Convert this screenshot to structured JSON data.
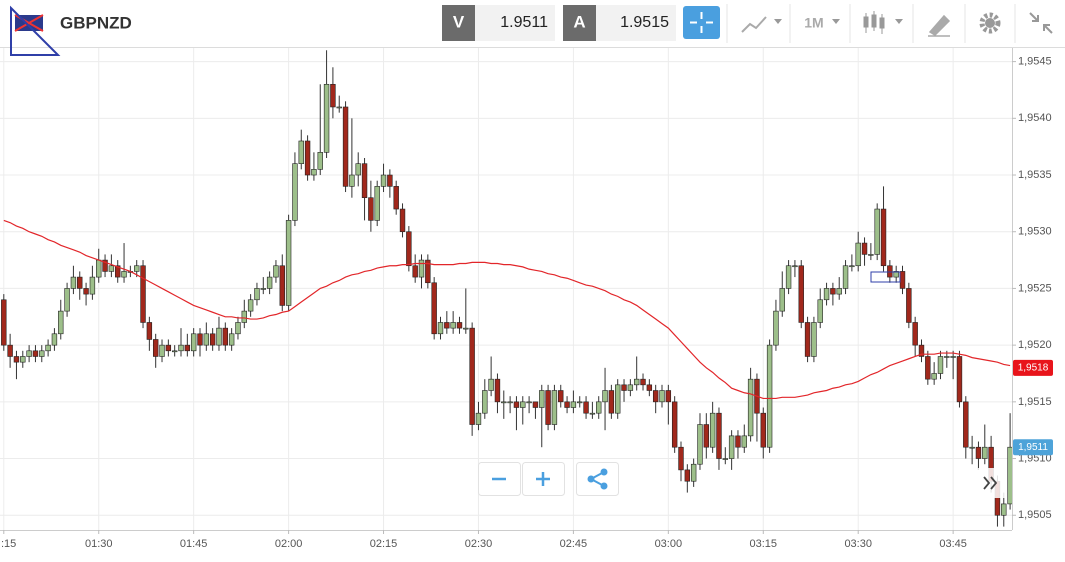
{
  "header": {
    "symbol": "GBPNZD",
    "bid_label": "V",
    "bid": "1.9511",
    "ask_label": "A",
    "ask": "1.9515",
    "timeframe": "1M"
  },
  "chart_data": {
    "type": "candlestick",
    "up_color": "#9dbf8a",
    "down_color": "#a1281c",
    "ma_color": "#e2262a",
    "candles": [
      [
        1.9524,
        1.95245,
        1.95195,
        1.952
      ],
      [
        1.952,
        1.9521,
        1.9518,
        1.9519
      ],
      [
        1.9519,
        1.95195,
        1.9517,
        1.95185
      ],
      [
        1.95185,
        1.95195,
        1.9518,
        1.9519
      ],
      [
        1.9519,
        1.952,
        1.95185,
        1.95195
      ],
      [
        1.95195,
        1.952,
        1.95185,
        1.9519
      ],
      [
        1.9519,
        1.952,
        1.95185,
        1.95195
      ],
      [
        1.95195,
        1.95205,
        1.9519,
        1.952
      ],
      [
        1.952,
        1.95215,
        1.95195,
        1.9521
      ],
      [
        1.9521,
        1.9524,
        1.95205,
        1.9523
      ],
      [
        1.9523,
        1.95255,
        1.95225,
        1.9525
      ],
      [
        1.9525,
        1.9527,
        1.95245,
        1.9526
      ],
      [
        1.9526,
        1.95265,
        1.9524,
        1.9525
      ],
      [
        1.9525,
        1.95255,
        1.95235,
        1.95245
      ],
      [
        1.95245,
        1.9527,
        1.9524,
        1.9526
      ],
      [
        1.9526,
        1.95285,
        1.95255,
        1.95275
      ],
      [
        1.95275,
        1.9528,
        1.9526,
        1.95265
      ],
      [
        1.95265,
        1.9528,
        1.9526,
        1.9527
      ],
      [
        1.9527,
        1.95275,
        1.95255,
        1.9526
      ],
      [
        1.9526,
        1.9529,
        1.95255,
        1.95265
      ],
      [
        1.95265,
        1.9527,
        1.9526,
        1.95265
      ],
      [
        1.95265,
        1.95275,
        1.9526,
        1.9527
      ],
      [
        1.9527,
        1.95275,
        1.95215,
        1.9522
      ],
      [
        1.9522,
        1.95225,
        1.95195,
        1.95205
      ],
      [
        1.95205,
        1.9521,
        1.9518,
        1.9519
      ],
      [
        1.9519,
        1.95205,
        1.95185,
        1.952
      ],
      [
        1.952,
        1.95205,
        1.9519,
        1.95195
      ],
      [
        1.95195,
        1.952,
        1.9519,
        1.95195
      ],
      [
        1.95195,
        1.95215,
        1.9519,
        1.952
      ],
      [
        1.952,
        1.9521,
        1.9519,
        1.95195
      ],
      [
        1.95195,
        1.95215,
        1.9519,
        1.9521
      ],
      [
        1.9521,
        1.95215,
        1.9519,
        1.952
      ],
      [
        1.952,
        1.9522,
        1.95195,
        1.9521
      ],
      [
        1.9521,
        1.95215,
        1.95195,
        1.952
      ],
      [
        1.952,
        1.95225,
        1.95195,
        1.95215
      ],
      [
        1.95215,
        1.9522,
        1.95195,
        1.952
      ],
      [
        1.952,
        1.95215,
        1.95195,
        1.9521
      ],
      [
        1.9521,
        1.95225,
        1.95205,
        1.9522
      ],
      [
        1.9522,
        1.9524,
        1.95215,
        1.9523
      ],
      [
        1.9523,
        1.95245,
        1.95225,
        1.9524
      ],
      [
        1.9524,
        1.95255,
        1.95235,
        1.9525
      ],
      [
        1.9525,
        1.9526,
        1.95245,
        1.9525
      ],
      [
        1.9525,
        1.95265,
        1.95245,
        1.9526
      ],
      [
        1.9526,
        1.95275,
        1.95255,
        1.9527
      ],
      [
        1.9527,
        1.9528,
        1.9523,
        1.95235
      ],
      [
        1.95235,
        1.95315,
        1.9523,
        1.9531
      ],
      [
        1.9531,
        1.9537,
        1.95305,
        1.9536
      ],
      [
        1.9536,
        1.9539,
        1.95355,
        1.9538
      ],
      [
        1.9538,
        1.95385,
        1.95345,
        1.9535
      ],
      [
        1.9535,
        1.9537,
        1.95345,
        1.95355
      ],
      [
        1.95355,
        1.9543,
        1.9535,
        1.9537
      ],
      [
        1.9537,
        1.9546,
        1.95365,
        1.9543
      ],
      [
        1.9543,
        1.95445,
        1.954,
        1.9541
      ],
      [
        1.9541,
        1.9542,
        1.95405,
        1.9541
      ],
      [
        1.9541,
        1.95415,
        1.95335,
        1.9534
      ],
      [
        1.9534,
        1.954,
        1.9533,
        1.9535
      ],
      [
        1.9535,
        1.9537,
        1.9534,
        1.9536
      ],
      [
        1.9536,
        1.95365,
        1.9531,
        1.9533
      ],
      [
        1.9533,
        1.95345,
        1.953,
        1.9531
      ],
      [
        1.9531,
        1.95345,
        1.95305,
        1.9534
      ],
      [
        1.9534,
        1.9536,
        1.95335,
        1.9535
      ],
      [
        1.9535,
        1.95355,
        1.9533,
        1.9534
      ],
      [
        1.9534,
        1.95345,
        1.95315,
        1.9532
      ],
      [
        1.9532,
        1.95325,
        1.95295,
        1.953
      ],
      [
        1.953,
        1.95305,
        1.95265,
        1.9527
      ],
      [
        1.9527,
        1.9528,
        1.95255,
        1.9526
      ],
      [
        1.9526,
        1.9528,
        1.9525,
        1.95275
      ],
      [
        1.95275,
        1.9528,
        1.9525,
        1.95255
      ],
      [
        1.95255,
        1.9526,
        1.95205,
        1.9521
      ],
      [
        1.9521,
        1.95225,
        1.95205,
        1.9522
      ],
      [
        1.9522,
        1.9523,
        1.9521,
        1.95215
      ],
      [
        1.95215,
        1.9523,
        1.9521,
        1.9522
      ],
      [
        1.9522,
        1.95225,
        1.9521,
        1.95215
      ],
      [
        1.95215,
        1.9525,
        1.9521,
        1.95215
      ],
      [
        1.95215,
        1.9522,
        1.9512,
        1.9513
      ],
      [
        1.9513,
        1.9515,
        1.95125,
        1.9514
      ],
      [
        1.9514,
        1.9517,
        1.95135,
        1.9516
      ],
      [
        1.9516,
        1.9519,
        1.95155,
        1.9517
      ],
      [
        1.9517,
        1.95175,
        1.9514,
        1.9515
      ],
      [
        1.9515,
        1.9516,
        1.95135,
        1.9515
      ],
      [
        1.9515,
        1.95155,
        1.9514,
        1.9515
      ],
      [
        1.9515,
        1.95155,
        1.95125,
        1.95145
      ],
      [
        1.95145,
        1.95155,
        1.9513,
        1.9515
      ],
      [
        1.9515,
        1.95155,
        1.9514,
        1.9515
      ],
      [
        1.9515,
        1.9515,
        1.95135,
        1.95145
      ],
      [
        1.95145,
        1.95165,
        1.9511,
        1.9516
      ],
      [
        1.9516,
        1.95165,
        1.95125,
        1.9513
      ],
      [
        1.9513,
        1.95165,
        1.95125,
        1.9516
      ],
      [
        1.9516,
        1.95165,
        1.95145,
        1.9515
      ],
      [
        1.9515,
        1.95155,
        1.9514,
        1.95145
      ],
      [
        1.95145,
        1.9516,
        1.9514,
        1.9515
      ],
      [
        1.9515,
        1.95155,
        1.95145,
        1.9515
      ],
      [
        1.9515,
        1.95155,
        1.95135,
        1.9514
      ],
      [
        1.9514,
        1.9515,
        1.95135,
        1.9514
      ],
      [
        1.9514,
        1.95155,
        1.95135,
        1.9515
      ],
      [
        1.9515,
        1.9518,
        1.95125,
        1.9516
      ],
      [
        1.9516,
        1.95165,
        1.95135,
        1.9514
      ],
      [
        1.9514,
        1.9517,
        1.95135,
        1.95165
      ],
      [
        1.95165,
        1.9517,
        1.9515,
        1.9516
      ],
      [
        1.9516,
        1.9517,
        1.95155,
        1.95165
      ],
      [
        1.95165,
        1.9519,
        1.9516,
        1.9517
      ],
      [
        1.9517,
        1.95175,
        1.9516,
        1.95165
      ],
      [
        1.95165,
        1.9517,
        1.95155,
        1.9516
      ],
      [
        1.9516,
        1.95165,
        1.9514,
        1.9515
      ],
      [
        1.9515,
        1.95165,
        1.95145,
        1.9516
      ],
      [
        1.9516,
        1.95165,
        1.9513,
        1.9515
      ],
      [
        1.9515,
        1.95155,
        1.95105,
        1.9511
      ],
      [
        1.9511,
        1.95115,
        1.9508,
        1.9509
      ],
      [
        1.9509,
        1.95095,
        1.9507,
        1.9508
      ],
      [
        1.9508,
        1.951,
        1.95075,
        1.95095
      ],
      [
        1.95095,
        1.9514,
        1.9509,
        1.9513
      ],
      [
        1.9513,
        1.9514,
        1.951,
        1.9511
      ],
      [
        1.9511,
        1.9515,
        1.95105,
        1.9514
      ],
      [
        1.9514,
        1.95145,
        1.9509,
        1.951
      ],
      [
        1.951,
        1.9511,
        1.95095,
        1.951
      ],
      [
        1.951,
        1.95125,
        1.9509,
        1.9512
      ],
      [
        1.9512,
        1.95125,
        1.951,
        1.9511
      ],
      [
        1.9511,
        1.9513,
        1.95105,
        1.9512
      ],
      [
        1.9512,
        1.9518,
        1.95115,
        1.9517
      ],
      [
        1.9517,
        1.95175,
        1.95115,
        1.9514
      ],
      [
        1.9514,
        1.95145,
        1.951,
        1.9511
      ],
      [
        1.9511,
        1.95205,
        1.95105,
        1.952
      ],
      [
        1.952,
        1.9524,
        1.95195,
        1.9523
      ],
      [
        1.9523,
        1.95265,
        1.95225,
        1.9525
      ],
      [
        1.9525,
        1.95275,
        1.95245,
        1.9527
      ],
      [
        1.9527,
        1.95275,
        1.9526,
        1.9527
      ],
      [
        1.9527,
        1.95275,
        1.95215,
        1.9522
      ],
      [
        1.9522,
        1.95225,
        1.95185,
        1.9519
      ],
      [
        1.9519,
        1.95225,
        1.95185,
        1.9522
      ],
      [
        1.9522,
        1.9525,
        1.95215,
        1.9524
      ],
      [
        1.9524,
        1.95255,
        1.95235,
        1.9525
      ],
      [
        1.9525,
        1.95255,
        1.95235,
        1.95245
      ],
      [
        1.95245,
        1.9526,
        1.9524,
        1.9525
      ],
      [
        1.9525,
        1.95275,
        1.95245,
        1.9527
      ],
      [
        1.9527,
        1.9528,
        1.95265,
        1.9527
      ],
      [
        1.9527,
        1.953,
        1.95265,
        1.9529
      ],
      [
        1.9529,
        1.95295,
        1.9527,
        1.9528
      ],
      [
        1.9528,
        1.9529,
        1.95275,
        1.9528
      ],
      [
        1.9528,
        1.95325,
        1.95275,
        1.9532
      ],
      [
        1.9532,
        1.9534,
        1.95265,
        1.9527
      ],
      [
        1.9527,
        1.95275,
        1.95255,
        1.9526
      ],
      [
        1.9526,
        1.9527,
        1.95255,
        1.95265
      ],
      [
        1.95265,
        1.9527,
        1.95245,
        1.9525
      ],
      [
        1.9525,
        1.95255,
        1.95215,
        1.9522
      ],
      [
        1.9522,
        1.95225,
        1.9519,
        1.952
      ],
      [
        1.952,
        1.95205,
        1.95185,
        1.9519
      ],
      [
        1.9519,
        1.95195,
        1.95165,
        1.9517
      ],
      [
        1.9517,
        1.95185,
        1.95165,
        1.95175
      ],
      [
        1.95175,
        1.95195,
        1.9517,
        1.9519
      ],
      [
        1.9519,
        1.95195,
        1.9518,
        1.9519
      ],
      [
        1.9519,
        1.95195,
        1.9517,
        1.9519
      ],
      [
        1.9519,
        1.95195,
        1.95145,
        1.9515
      ],
      [
        1.9515,
        1.95155,
        1.951,
        1.9511
      ],
      [
        1.9511,
        1.9512,
        1.95095,
        1.9511
      ],
      [
        1.9511,
        1.95115,
        1.9509,
        1.951
      ],
      [
        1.951,
        1.9513,
        1.95095,
        1.9511
      ],
      [
        1.9511,
        1.9512,
        1.9507,
        1.9508
      ],
      [
        1.9508,
        1.95085,
        1.9504,
        1.9505
      ],
      [
        1.9505,
        1.9507,
        1.9504,
        1.9506
      ],
      [
        1.9506,
        1.9514,
        1.95055,
        1.9511
      ]
    ],
    "ma": [
      1.9531,
      1.95308,
      1.95305,
      1.95303,
      1.953,
      1.95298,
      1.95296,
      1.95293,
      1.95291,
      1.95288,
      1.95286,
      1.95284,
      1.95282,
      1.95279,
      1.95277,
      1.95275,
      1.95273,
      1.95271,
      1.95269,
      1.95267,
      1.95265,
      1.95262,
      1.95259,
      1.95256,
      1.95253,
      1.9525,
      1.95247,
      1.95244,
      1.95241,
      1.95238,
      1.95235,
      1.95233,
      1.95231,
      1.95229,
      1.95227,
      1.95225,
      1.95225,
      1.95224,
      1.95224,
      1.95223,
      1.95223,
      1.95224,
      1.95226,
      1.95227,
      1.95229,
      1.9523,
      1.95234,
      1.95238,
      1.95242,
      1.95246,
      1.9525,
      1.95252,
      1.95255,
      1.95257,
      1.9526,
      1.95262,
      1.95263,
      1.95265,
      1.95266,
      1.95268,
      1.95269,
      1.9527,
      1.9527,
      1.95271,
      1.95271,
      1.95272,
      1.95272,
      1.95272,
      1.95271,
      1.95271,
      1.95271,
      1.95271,
      1.95272,
      1.95272,
      1.95273,
      1.95273,
      1.95273,
      1.95272,
      1.95272,
      1.95271,
      1.95271,
      1.9527,
      1.95269,
      1.95267,
      1.95266,
      1.95265,
      1.95263,
      1.95262,
      1.9526,
      1.95259,
      1.95257,
      1.95255,
      1.95253,
      1.95252,
      1.9525,
      1.95248,
      1.95245,
      1.95243,
      1.9524,
      1.95238,
      1.95235,
      1.95231,
      1.95227,
      1.95223,
      1.95219,
      1.95215,
      1.95209,
      1.95203,
      1.95197,
      1.95191,
      1.95185,
      1.9518,
      1.95176,
      1.95171,
      1.95167,
      1.95162,
      1.9516,
      1.95158,
      1.95157,
      1.95155,
      1.95153,
      1.95153,
      1.95153,
      1.95154,
      1.95154,
      1.95154,
      1.95155,
      1.95156,
      1.95158,
      1.95159,
      1.9516,
      1.95162,
      1.95163,
      1.95165,
      1.95166,
      1.95168,
      1.95171,
      1.95174,
      1.95176,
      1.95179,
      1.95182,
      1.95184,
      1.95186,
      1.95188,
      1.9519,
      1.95192,
      1.95192,
      1.95192,
      1.95193,
      1.95193,
      1.95193,
      1.95192,
      1.95191,
      1.95189,
      1.95188,
      1.95187,
      1.95186,
      1.95185,
      1.95183,
      1.95182
    ],
    "xlim": [
      -0.6,
      159.3
    ],
    "xticks": [
      {
        "value": 0,
        "label": ":15"
      },
      {
        "value": 15,
        "label": "01:30"
      },
      {
        "value": 30,
        "label": "01:45"
      },
      {
        "value": 45,
        "label": "02:00"
      },
      {
        "value": 60,
        "label": "02:15"
      },
      {
        "value": 75,
        "label": "02:30"
      },
      {
        "value": 90,
        "label": "02:45"
      },
      {
        "value": 105,
        "label": "03:00"
      },
      {
        "value": 120,
        "label": "03:15"
      },
      {
        "value": 135,
        "label": "03:30"
      },
      {
        "value": 150,
        "label": "03:45"
      }
    ],
    "ylim": [
      1.95037,
      1.95462
    ],
    "yticks": [
      {
        "value": 1.9505,
        "label": "1,9505"
      },
      {
        "value": 1.951,
        "label": "1,9510"
      },
      {
        "value": 1.9515,
        "label": "1,9515"
      },
      {
        "value": 1.952,
        "label": "1,9520"
      },
      {
        "value": 1.9525,
        "label": "1,9525"
      },
      {
        "value": 1.953,
        "label": "1,9530"
      },
      {
        "value": 1.9535,
        "label": "1,9535"
      },
      {
        "value": 1.954,
        "label": "1,9540"
      },
      {
        "value": 1.9545,
        "label": "1,9545"
      }
    ],
    "grid": true,
    "price_labels": [
      {
        "value": 1.9518,
        "label": "1,9518",
        "color": "#e8141b"
      },
      {
        "value": 1.9511,
        "label": "1,9511",
        "color": "#4ea3d9"
      }
    ]
  }
}
